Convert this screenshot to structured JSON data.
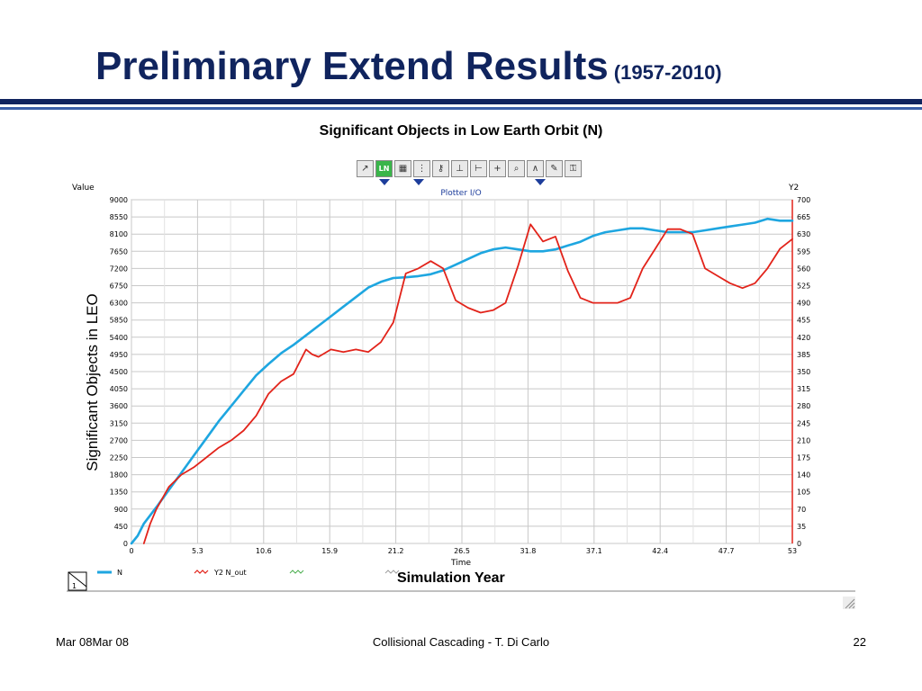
{
  "slide": {
    "title": "Preliminary Extend Results",
    "title_sub": "(1957-2010)",
    "chart_heading": "Significant Objects in Low Earth Orbit (N)",
    "y_axis_label": "Significant Objects in LEO",
    "x_axis_label": "Simulation Year",
    "footer_left": "Mar 08Mar 08",
    "footer_center": "Collisional Cascading - T. Di Carlo",
    "footer_right": "22",
    "title_color": "#10245e"
  },
  "plotter": {
    "toolbar_icons": [
      "plot-type-icon",
      "ln-icon",
      "table-icon",
      "grid-icon",
      "key-icon",
      "axis-x-icon",
      "axis-y-icon",
      "axis-xy-icon",
      "zoom-icon",
      "scale-icon",
      "pencil-icon",
      "lock-icon"
    ],
    "toolbar_ln": "LN",
    "window_title": "Plotter I/O",
    "value_label": "Value",
    "y2_label": "Y2",
    "time_label": "Time",
    "legend_index": "1"
  },
  "chart_data": {
    "type": "line",
    "ylim": [
      0,
      9000
    ],
    "y2lim": [
      0,
      700
    ],
    "xlim": [
      0,
      53
    ],
    "y_ticks": [
      "0",
      "450",
      "900",
      "1350",
      "1800",
      "2250",
      "2700",
      "3150",
      "3600",
      "4050",
      "4500",
      "4950",
      "5400",
      "5850",
      "6300",
      "6750",
      "7200",
      "7650",
      "8100",
      "8550",
      "9000"
    ],
    "y2_ticks": [
      "0",
      "35",
      "70",
      "105",
      "140",
      "175",
      "210",
      "245",
      "280",
      "315",
      "350",
      "385",
      "420",
      "455",
      "490",
      "525",
      "560",
      "595",
      "630",
      "665",
      "700"
    ],
    "x_ticks": [
      "0",
      "5.3",
      "10.6",
      "15.9",
      "21.2",
      "26.5",
      "31.8",
      "37.1",
      "42.4",
      "47.7",
      "53"
    ],
    "grid": true,
    "legend_position": "bottom-left",
    "series": [
      {
        "name": "N",
        "axis": "y",
        "color": "#1ea6e0",
        "x": [
          0,
          0.5,
          1,
          2,
          3,
          4,
          5,
          6,
          7,
          8,
          9,
          10,
          11,
          12,
          13,
          14,
          15,
          16,
          17,
          18,
          19,
          20,
          21,
          22,
          23,
          24,
          25,
          26,
          27,
          28,
          29,
          30,
          31,
          32,
          33,
          34,
          35,
          36,
          37,
          38,
          39,
          40,
          41,
          42,
          43,
          44,
          45,
          46,
          47,
          48,
          49,
          50,
          51,
          52,
          53
        ],
        "values": [
          0,
          200,
          520,
          950,
          1400,
          1850,
          2300,
          2750,
          3200,
          3600,
          4000,
          4400,
          4700,
          4980,
          5200,
          5450,
          5700,
          5950,
          6200,
          6450,
          6700,
          6850,
          6950,
          6970,
          7000,
          7050,
          7150,
          7300,
          7450,
          7600,
          7700,
          7750,
          7700,
          7650,
          7650,
          7700,
          7800,
          7900,
          8050,
          8150,
          8200,
          8250,
          8250,
          8200,
          8150,
          8150,
          8150,
          8200,
          8250,
          8300,
          8350,
          8400,
          8500,
          8450,
          8450
        ]
      },
      {
        "name": "Y2 N_out",
        "axis": "y2",
        "color": "#e2231a",
        "x": [
          1,
          1.5,
          2,
          3,
          4,
          5,
          6,
          7,
          8,
          9,
          10,
          11,
          12,
          13,
          14,
          14.5,
          15,
          16,
          17,
          18,
          19,
          20,
          21,
          22,
          23,
          24,
          25,
          26,
          27,
          28,
          29,
          30,
          31,
          32,
          33,
          34,
          35,
          36,
          37,
          38,
          39,
          40,
          41,
          42,
          43,
          44,
          45,
          46,
          47,
          48,
          49,
          50,
          51,
          52,
          53
        ],
        "values": [
          0,
          40,
          70,
          115,
          140,
          155,
          175,
          195,
          210,
          230,
          260,
          305,
          330,
          345,
          395,
          385,
          380,
          395,
          390,
          395,
          390,
          410,
          450,
          550,
          560,
          575,
          560,
          495,
          480,
          470,
          475,
          490,
          565,
          650,
          615,
          625,
          555,
          500,
          490,
          490,
          490,
          500,
          560,
          600,
          640,
          640,
          630,
          560,
          545,
          530,
          520,
          530,
          560,
          600,
          620
        ]
      },
      {
        "name": "",
        "axis": "y",
        "color": "#4caf50",
        "x": [],
        "values": []
      },
      {
        "name": "",
        "axis": "y",
        "color": "#9e9e9e",
        "x": [],
        "values": []
      }
    ]
  }
}
